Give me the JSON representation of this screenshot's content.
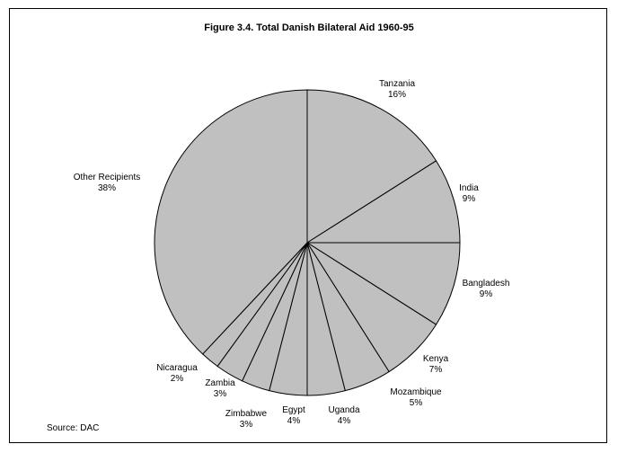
{
  "chart_data": {
    "type": "pie",
    "title": "Figure 3.4.  Total Danish Bilateral Aid 1960-95",
    "source": "Source: DAC",
    "slices": [
      {
        "label": "Tanzania",
        "value_text": "16%",
        "value": 16
      },
      {
        "label": "India",
        "value_text": "9%",
        "value": 9
      },
      {
        "label": "Bangladesh",
        "value_text": "9%",
        "value": 9
      },
      {
        "label": "Kenya",
        "value_text": "7%",
        "value": 7
      },
      {
        "label": "Mozambique",
        "value_text": "5%",
        "value": 5
      },
      {
        "label": "Uganda",
        "value_text": "4%",
        "value": 4
      },
      {
        "label": "Egypt",
        "value_text": "4%",
        "value": 4
      },
      {
        "label": "Zimbabwe",
        "value_text": "3%",
        "value": 3
      },
      {
        "label": "Zambia",
        "value_text": "3%",
        "value": 3
      },
      {
        "label": "Nicaragua",
        "value_text": "2%",
        "value": 2
      },
      {
        "label": "Other Recipients",
        "value_text": "38%",
        "value": 38
      }
    ],
    "colors": {
      "fill": "#c0c0c0",
      "stroke": "#000000",
      "text": "#000000"
    }
  }
}
